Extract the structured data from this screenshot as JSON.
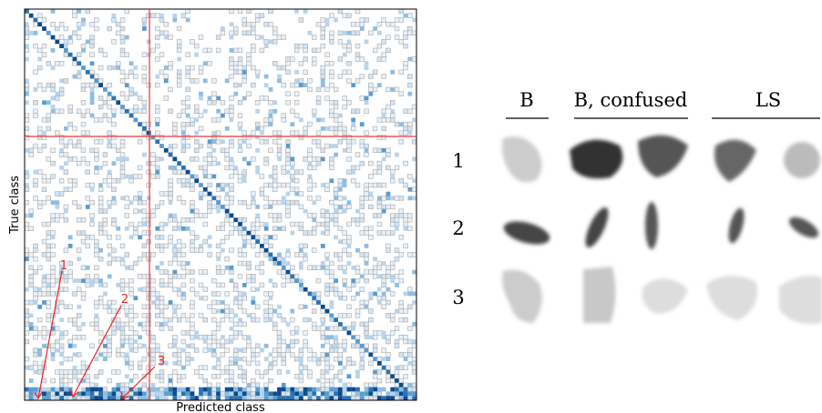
{
  "matrix": {
    "x_label": "Predicted class",
    "y_label": "True class",
    "annotations": [
      "1",
      "2",
      "3"
    ]
  },
  "panel": {
    "headers": [
      "B",
      "B, confused",
      "LS"
    ],
    "rows": [
      "1",
      "2",
      "3"
    ]
  }
}
